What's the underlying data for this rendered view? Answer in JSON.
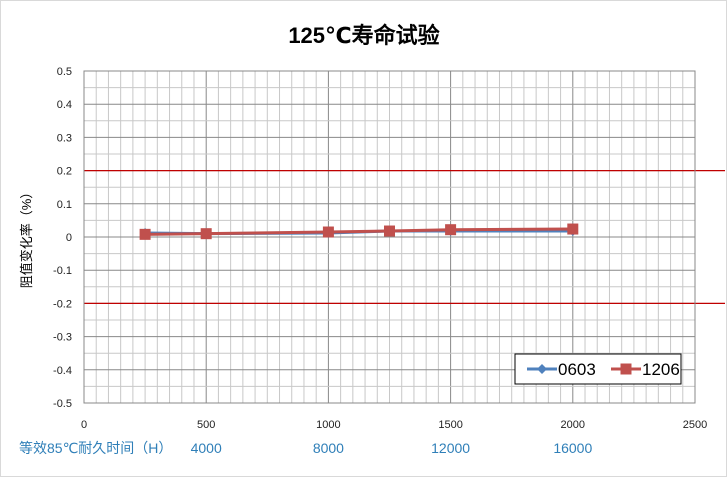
{
  "chart_data": {
    "type": "line",
    "title": "125℃寿命试验",
    "xlabel": "",
    "ylabel": "阻值变化率（%）",
    "xlim": [
      0,
      2500
    ],
    "ylim": [
      -0.5,
      0.5
    ],
    "xticks": [
      0,
      500,
      1000,
      1500,
      2000,
      2500
    ],
    "yticks": [
      0.5,
      0.4,
      0.3,
      0.2,
      0.1,
      0,
      -0.1,
      -0.2,
      -0.3,
      -0.4,
      -0.5
    ],
    "grid": true,
    "secondary_x_label": "等效85℃耐久时间（H）",
    "secondary_x_ticks": [
      {
        "at": 500,
        "label": "4000"
      },
      {
        "at": 1000,
        "label": "8000"
      },
      {
        "at": 1500,
        "label": "12000"
      },
      {
        "at": 2000,
        "label": "16000"
      }
    ],
    "limit_lines": {
      "values": [
        0.2,
        -0.2
      ],
      "color": "#c00000"
    },
    "legend_position": "bottom-right",
    "series": [
      {
        "name": "0603",
        "color": "#4f81bd",
        "marker": "diamond",
        "x": [
          250,
          500,
          1000,
          1250,
          1500,
          2000
        ],
        "y": [
          0.012,
          0.01,
          0.012,
          0.018,
          0.018,
          0.018
        ]
      },
      {
        "name": "1206",
        "color": "#c0504d",
        "marker": "square",
        "x": [
          250,
          500,
          1000,
          1250,
          1500,
          2000
        ],
        "y": [
          0.008,
          0.01,
          0.015,
          0.018,
          0.022,
          0.024
        ]
      }
    ]
  }
}
